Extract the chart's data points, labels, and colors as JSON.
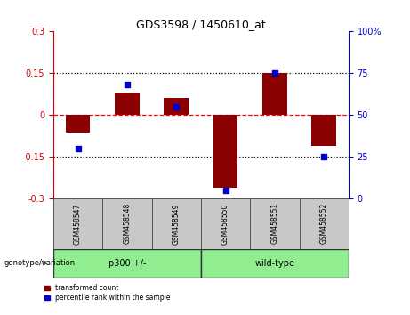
{
  "title": "GDS3598 / 1450610_at",
  "categories": [
    "GSM458547",
    "GSM458548",
    "GSM458549",
    "GSM458550",
    "GSM458551",
    "GSM458552"
  ],
  "red_bars": [
    -0.062,
    0.08,
    0.06,
    -0.26,
    0.15,
    -0.11
  ],
  "blue_dots": [
    30,
    68,
    55,
    5,
    75,
    25
  ],
  "ylim": [
    -0.3,
    0.3
  ],
  "yticks_left": [
    -0.3,
    -0.15,
    0,
    0.15,
    0.3
  ],
  "yticks_right": [
    0,
    25,
    50,
    75,
    100
  ],
  "hlines_dotted": [
    0.15,
    -0.15
  ],
  "hline_dashed": 0,
  "group1_label": "p300 +/-",
  "group2_label": "wild-type",
  "group1_indices": [
    0,
    1,
    2
  ],
  "group2_indices": [
    3,
    4,
    5
  ],
  "genotype_label": "genotype/variation",
  "legend_red": "transformed count",
  "legend_blue": "percentile rank within the sample",
  "bar_color": "#8B0000",
  "dot_color": "#0000CD",
  "group_color": "#90EE90",
  "bg_color": "#C8C8C8",
  "left_axis_color": "#CC0000",
  "right_axis_color": "#0000CD",
  "bar_width": 0.5
}
